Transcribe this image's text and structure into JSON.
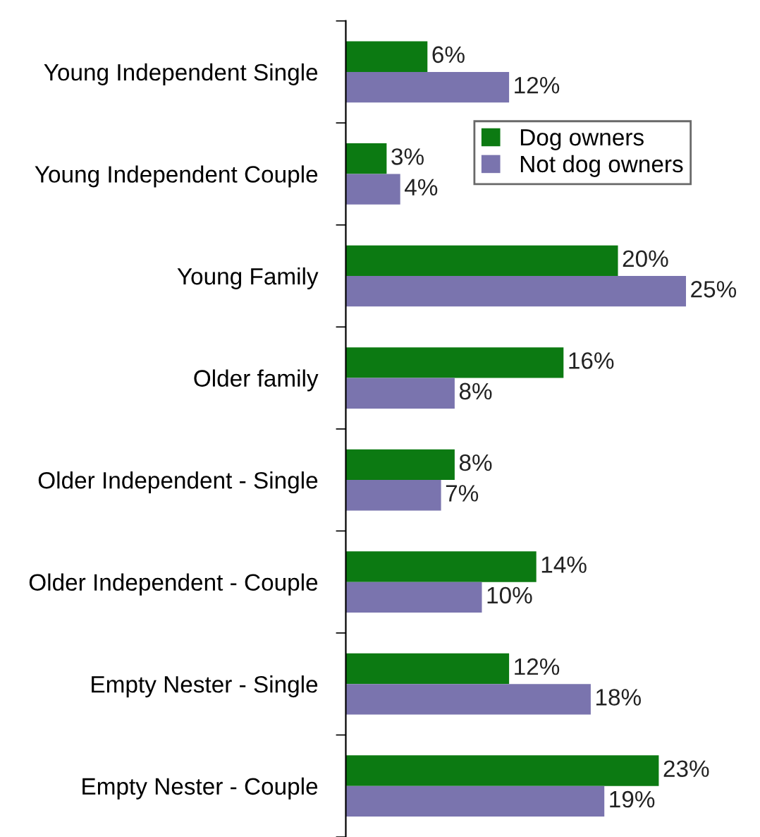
{
  "chart_data": {
    "type": "bar",
    "orientation": "horizontal",
    "categories": [
      "Young Independent Single",
      "Young Independent Couple",
      "Young Family",
      "Older family",
      "Older Independent - Single",
      "Older Independent - Couple",
      "Empty Nester - Single",
      "Empty Nester - Couple"
    ],
    "series": [
      {
        "name": "Dog owners",
        "color": "#0c7a12",
        "values": [
          6,
          3,
          20,
          16,
          8,
          14,
          12,
          23
        ],
        "value_labels": [
          "6%",
          "3%",
          "20%",
          "16%",
          "8%",
          "14%",
          "12%",
          "23%"
        ]
      },
      {
        "name": "Not dog owners",
        "color": "#7a74ae",
        "values": [
          12,
          4,
          25,
          8,
          7,
          10,
          18,
          19
        ],
        "value_labels": [
          "12%",
          "4%",
          "25%",
          "8%",
          "7%",
          "10%",
          "18%",
          "19%"
        ]
      }
    ],
    "legend": "top right"
  }
}
